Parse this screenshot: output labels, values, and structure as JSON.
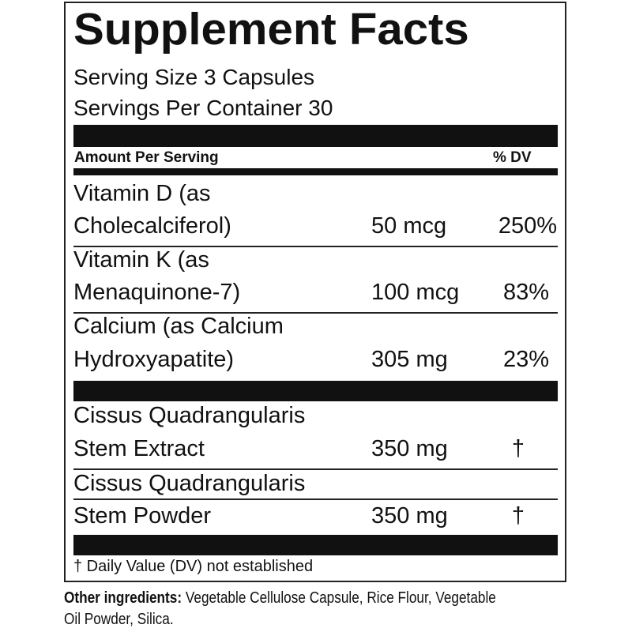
{
  "title": "Supplement Facts",
  "serving_size": "Serving Size 3 Capsules",
  "servings_per_container": "Servings Per Container 30",
  "header": {
    "amount": "Amount Per Serving",
    "dv": "% DV"
  },
  "nutrients": [
    {
      "line1": "Vitamin D (as",
      "line2": "Cholecalciferol)",
      "amount": "50 mcg",
      "dv": "250%"
    },
    {
      "line1": "Vitamin K (as",
      "line2": "Menaquinone-7)",
      "amount": "100 mcg",
      "dv": "83%"
    },
    {
      "line1": "Calcium (as Calcium",
      "line2": "Hydroxyapatite)",
      "amount": "305 mg",
      "dv": "23%"
    }
  ],
  "others": [
    {
      "line1": "Cissus Quadrangularis",
      "line2": "Stem Extract",
      "amount": "350 mg",
      "dv": "†"
    },
    {
      "line1": "Cissus Quadrangularis",
      "line2": "Stem Powder",
      "amount": "350 mg",
      "dv": "†"
    }
  ],
  "footnote": "† Daily Value (DV) not established",
  "other_ingredients": {
    "label": "Other ingredients:",
    "line1": " Vegetable Cellulose Capsule, Rice Flour, Vegetable",
    "line2": "Oil Powder, Silica."
  }
}
